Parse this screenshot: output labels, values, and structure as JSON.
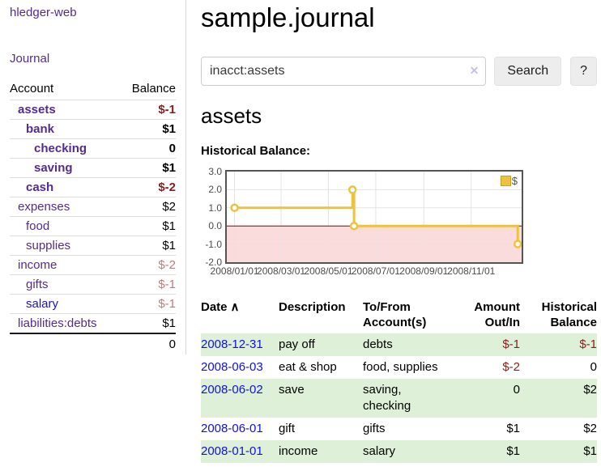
{
  "app": {
    "brand": "hledger-web",
    "nav_journal": "Journal"
  },
  "sidebar": {
    "header": {
      "account": "Account",
      "balance": "Balance"
    },
    "accounts": [
      {
        "name": "assets",
        "level": 0,
        "balance": "$-1",
        "active": true
      },
      {
        "name": "bank",
        "level": 1,
        "balance": "$1",
        "active": true
      },
      {
        "name": "checking",
        "level": 2,
        "balance": "0",
        "active": true
      },
      {
        "name": "saving",
        "level": 2,
        "balance": "$1",
        "active": true
      },
      {
        "name": "cash",
        "level": 1,
        "balance": "$-2",
        "active": true
      },
      {
        "name": "expenses",
        "level": 0,
        "balance": "$2",
        "active": false
      },
      {
        "name": "food",
        "level": 1,
        "balance": "$1",
        "active": false
      },
      {
        "name": "supplies",
        "level": 1,
        "balance": "$1",
        "active": false
      },
      {
        "name": "income",
        "level": 0,
        "balance": "$-2",
        "active": false
      },
      {
        "name": "gifts",
        "level": 1,
        "balance": "$-1",
        "active": false
      },
      {
        "name": "salary",
        "level": 1,
        "balance": "$-1",
        "active": false,
        "unvisited": true
      },
      {
        "name": "liabilities:debts",
        "level": 0,
        "balance": "$1",
        "active": false
      }
    ],
    "total": "0"
  },
  "header": {
    "title": "sample.journal"
  },
  "search": {
    "value": "inacct:assets",
    "clear_icon": "✕",
    "button_label": "Search",
    "help_label": "?"
  },
  "account_page": {
    "title": "assets",
    "chart_label": "Historical Balance:"
  },
  "chart_data": {
    "type": "line",
    "step": true,
    "series": [
      {
        "name": "$",
        "points": [
          {
            "date": "2008-01-01",
            "value": 1
          },
          {
            "date": "2008-06-01",
            "value": 2
          },
          {
            "date": "2008-06-03",
            "value": 0
          },
          {
            "date": "2008-12-31",
            "value": -1
          }
        ]
      }
    ],
    "x_ticks": [
      "2008/01/01",
      "2008/03/01",
      "2008/05/01",
      "2008/07/01",
      "2008/09/01",
      "2008/11/01"
    ],
    "y_ticks": [
      3,
      2,
      1,
      0,
      -1,
      -2
    ],
    "ylim": [
      -2,
      3
    ],
    "xlim": [
      "2007-12-22",
      "2009-01-05"
    ],
    "grid": true,
    "legend_position": "top-right",
    "colors": {
      "line": "#edc240",
      "marker_fill": "#ffffff",
      "negative_region": "#fbdcdc",
      "zero_line": "#8b0000",
      "grid": "#e3e3e3",
      "border": "#545454"
    }
  },
  "transactions": {
    "sort_icon": "∧",
    "headers": {
      "date": "Date",
      "description": "Description",
      "accounts": "To/From Account(s)",
      "amount": "Amount Out/In",
      "balance": "Historical Balance"
    },
    "rows": [
      {
        "date": "2008-12-31",
        "description": "pay off",
        "accounts": "debts",
        "amount": "$-1",
        "balance": "$-1"
      },
      {
        "date": "2008-06-03",
        "description": "eat & shop",
        "accounts": "food, supplies",
        "amount": "$-2",
        "balance": "0"
      },
      {
        "date": "2008-06-02",
        "description": "save",
        "accounts": "saving, checking",
        "amount": "0",
        "balance": "$2"
      },
      {
        "date": "2008-06-01",
        "description": "gift",
        "accounts": "gifts",
        "amount": "$1",
        "balance": "$2"
      },
      {
        "date": "2008-01-01",
        "description": "income",
        "accounts": "salary",
        "amount": "$1",
        "balance": "$1"
      }
    ]
  },
  "colors": {
    "link_purple": "#552b90",
    "link_blue": "#1010e6",
    "negative_strong": "#8c1c1c",
    "negative_muted": "#bd7d7d",
    "row_green": "#dff0d8"
  }
}
